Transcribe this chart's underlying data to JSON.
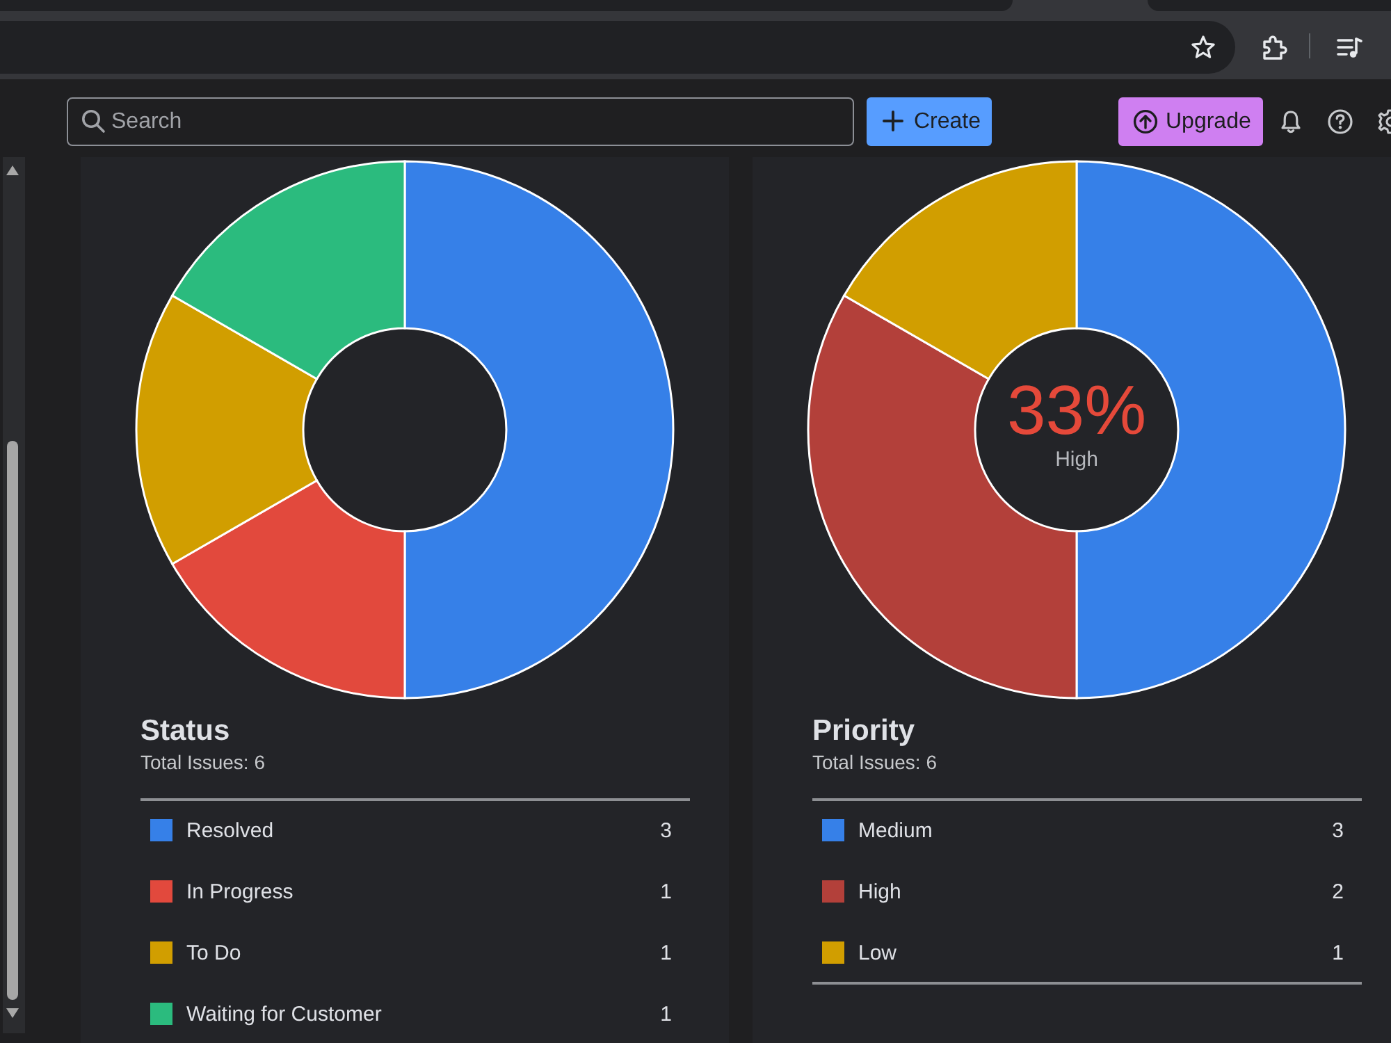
{
  "chart_data": [
    {
      "type": "other",
      "annotations": [
        "Search",
        "Create",
        "Upgrade"
      ]
    },
    {
      "type": "donut",
      "title": "Status",
      "subtitle": "Total Issues: 6",
      "categories": [
        "Resolved",
        "In Progress",
        "To Do",
        "Waiting for Customer"
      ],
      "values": [
        3,
        1,
        1,
        1
      ],
      "colors": [
        "#3680e8",
        "#e2493d",
        "#d19e00",
        "#2bbb7e"
      ],
      "legend": "bottom",
      "data_labels": true
    },
    {
      "type": "donut",
      "title": "Priority",
      "subtitle": "Total Issues: 6",
      "categories": [
        "Medium",
        "High",
        "Low"
      ],
      "values": [
        3,
        2,
        1
      ],
      "colors": [
        "#3680e8",
        "#b3403a",
        "#d19e00"
      ],
      "legend": "bottom",
      "data_labels": true,
      "annotations": [
        "33%",
        "High"
      ]
    }
  ]
}
